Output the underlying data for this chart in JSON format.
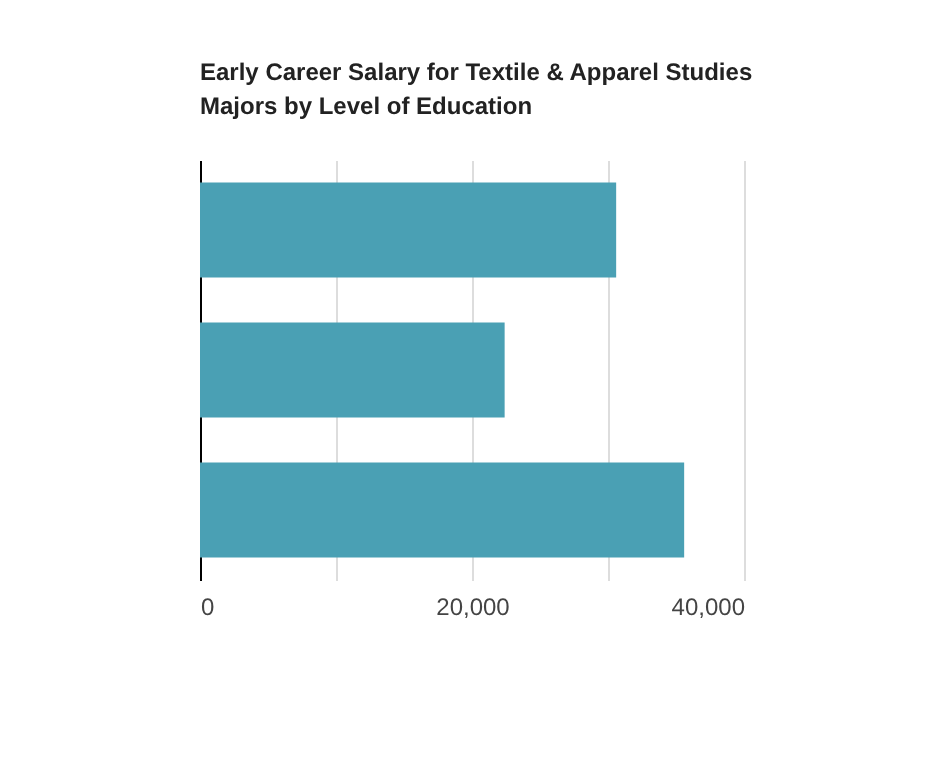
{
  "chart_data": {
    "type": "bar",
    "orientation": "horizontal",
    "title": "Early Career Salary for Textile & Apparel Studies\nMajors by Level of Education",
    "categories": [
      null,
      null,
      null
    ],
    "values": [
      30600,
      22400,
      35600
    ],
    "color": "#4aa0b4",
    "xlim": [
      0,
      40000
    ],
    "xticks": [
      {
        "value": 0,
        "label": "0"
      },
      {
        "value": 10000,
        "label": null
      },
      {
        "value": 20000,
        "label": "20,000"
      },
      {
        "value": 30000,
        "label": null
      },
      {
        "value": 40000,
        "label": "40,000"
      }
    ],
    "grid": "x"
  }
}
